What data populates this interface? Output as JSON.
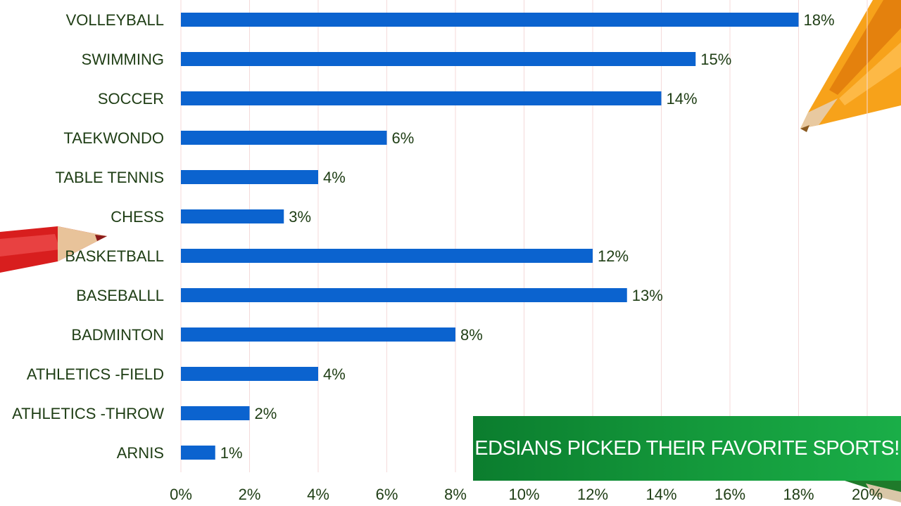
{
  "caption": "EDSIANS PICKED THEIR FAVORITE SPORTS!",
  "colors": {
    "bar": "#0b63cf",
    "text": "#1e3d14",
    "grid": "#f4dada",
    "caption_bg": "#149a3c"
  },
  "chart_data": {
    "type": "bar",
    "orientation": "horizontal",
    "categories": [
      "VOLLEYBALL",
      "SWIMMING",
      "SOCCER",
      "TAEKWONDO",
      "TABLE TENNIS",
      "CHESS",
      "BASKETBALL",
      "BASEBALLL",
      "BADMINTON",
      "ATHLETICS -FIELD",
      "ATHLETICS -THROW",
      "ARNIS"
    ],
    "values": [
      18,
      15,
      14,
      6,
      4,
      3,
      12,
      13,
      8,
      4,
      2,
      1
    ],
    "value_labels": [
      "18%",
      "15%",
      "14%",
      "6%",
      "4%",
      "3%",
      "12%",
      "13%",
      "8%",
      "4%",
      "2%",
      "1%"
    ],
    "xlim": [
      0,
      20
    ],
    "x_ticks": [
      "0%",
      "2%",
      "4%",
      "6%",
      "8%",
      "10%",
      "12%",
      "14%",
      "16%",
      "18%",
      "20%"
    ],
    "grid": true,
    "legend": "none"
  }
}
